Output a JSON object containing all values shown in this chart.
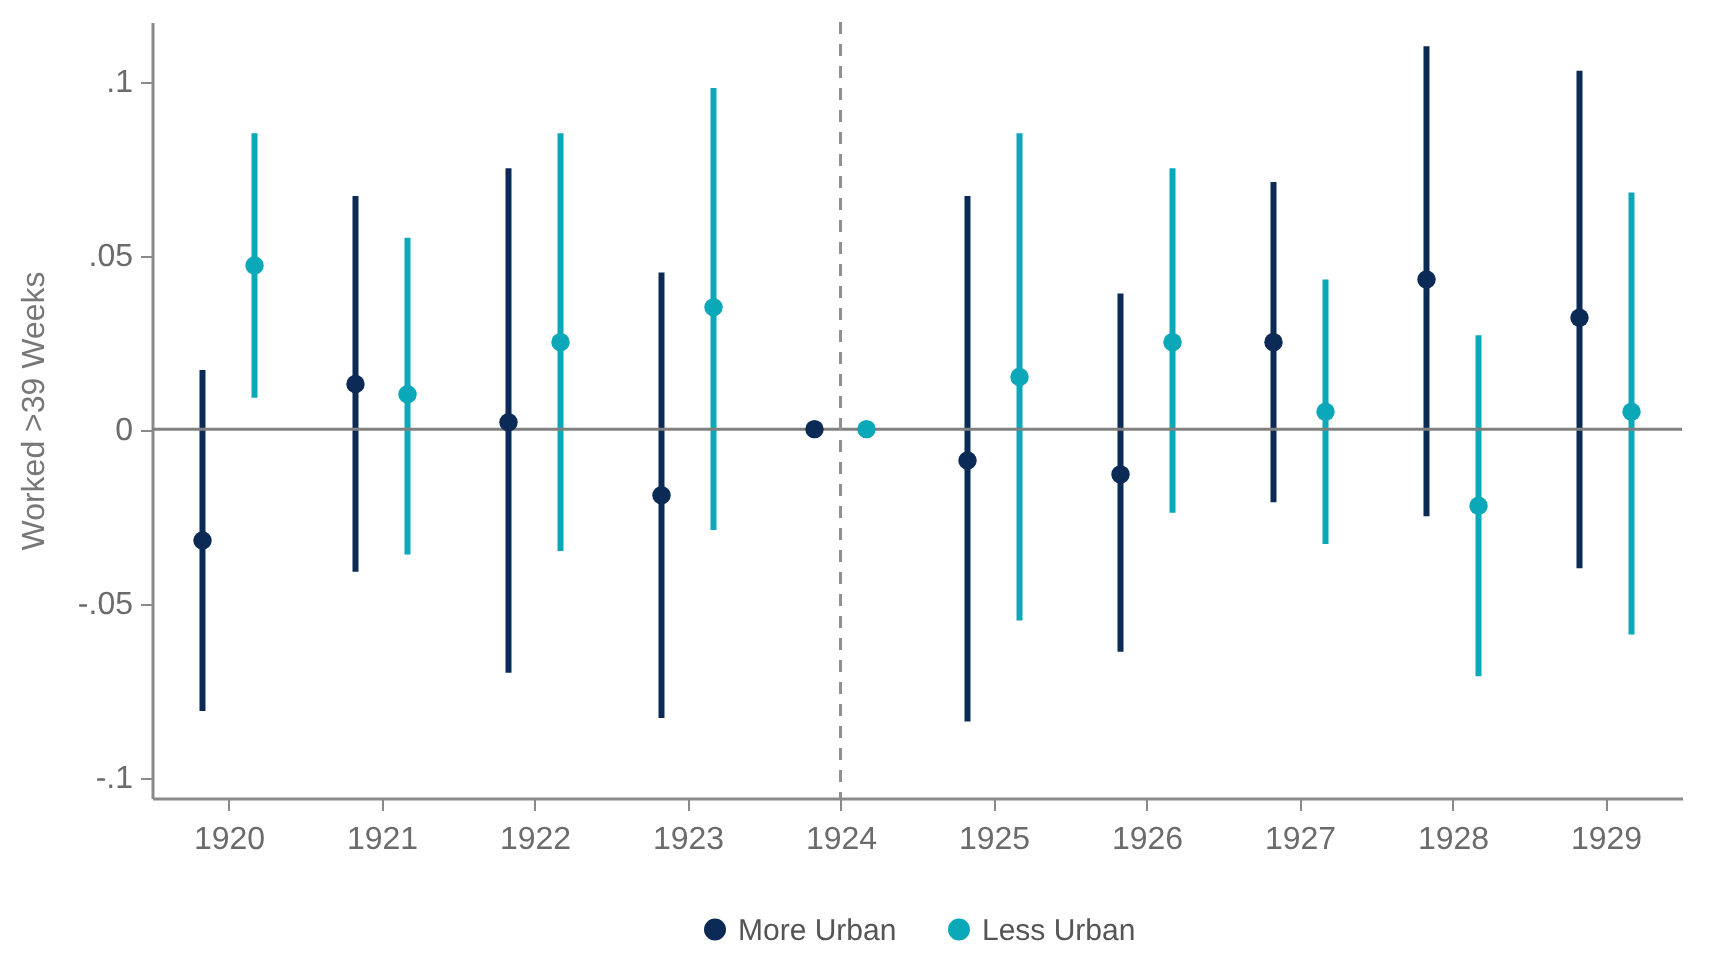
{
  "chart_data": {
    "type": "scatter",
    "ylabel": "Worked >39 Weeks",
    "xlim": [
      1919.5,
      1929.5
    ],
    "xticks": [
      1920,
      1921,
      1922,
      1923,
      1924,
      1925,
      1926,
      1927,
      1928,
      1929
    ],
    "ylim": [
      -0.106,
      0.117
    ],
    "yticks": [
      {
        "value": -0.1,
        "label": "-.1"
      },
      {
        "value": -0.05,
        "label": "-.05"
      },
      {
        "value": 0,
        "label": "0"
      },
      {
        "value": 0.05,
        "label": ".05"
      },
      {
        "value": 0.1,
        "label": ".1"
      }
    ],
    "grid": false,
    "legend": "bottom",
    "marker": "circle",
    "ref_lines": [
      {
        "axis": "y",
        "value": 0,
        "color": "#808080",
        "line_style": "solid"
      },
      {
        "axis": "x",
        "value": 1924,
        "color": "#909090",
        "line_style": "dashed"
      }
    ],
    "series": [
      {
        "name": "More Urban",
        "color": "#0b2a55",
        "x": [
          1919.83,
          1920.83,
          1921.83,
          1922.83,
          1923.83,
          1924.83,
          1925.83,
          1926.83,
          1927.83,
          1928.83
        ],
        "values": [
          -0.032,
          0.013,
          0.002,
          -0.019,
          0,
          -0.009,
          -0.013,
          0.025,
          0.043,
          0.032
        ],
        "errors": [
          [
            -0.081,
            0.017
          ],
          [
            -0.041,
            0.067
          ],
          [
            -0.07,
            0.075
          ],
          [
            -0.083,
            0.045
          ],
          null,
          [
            -0.084,
            0.067
          ],
          [
            -0.064,
            0.039
          ],
          [
            -0.021,
            0.071
          ],
          [
            -0.025,
            0.11
          ],
          [
            -0.04,
            0.103
          ]
        ]
      },
      {
        "name": "Less Urban",
        "color": "#0aa8b8",
        "x": [
          1920.17,
          1921.17,
          1922.17,
          1923.17,
          1924.17,
          1925.17,
          1926.17,
          1927.17,
          1928.17,
          1929.17
        ],
        "values": [
          0.047,
          0.01,
          0.025,
          0.035,
          0,
          0.015,
          0.025,
          0.005,
          -0.022,
          0.005
        ],
        "errors": [
          [
            0.009,
            0.085
          ],
          [
            -0.036,
            0.055
          ],
          [
            -0.035,
            0.085
          ],
          [
            -0.029,
            0.098
          ],
          null,
          [
            -0.055,
            0.085
          ],
          [
            -0.024,
            0.075
          ],
          [
            -0.033,
            0.043
          ],
          [
            -0.071,
            0.027
          ],
          [
            -0.059,
            0.068
          ]
        ]
      }
    ]
  }
}
